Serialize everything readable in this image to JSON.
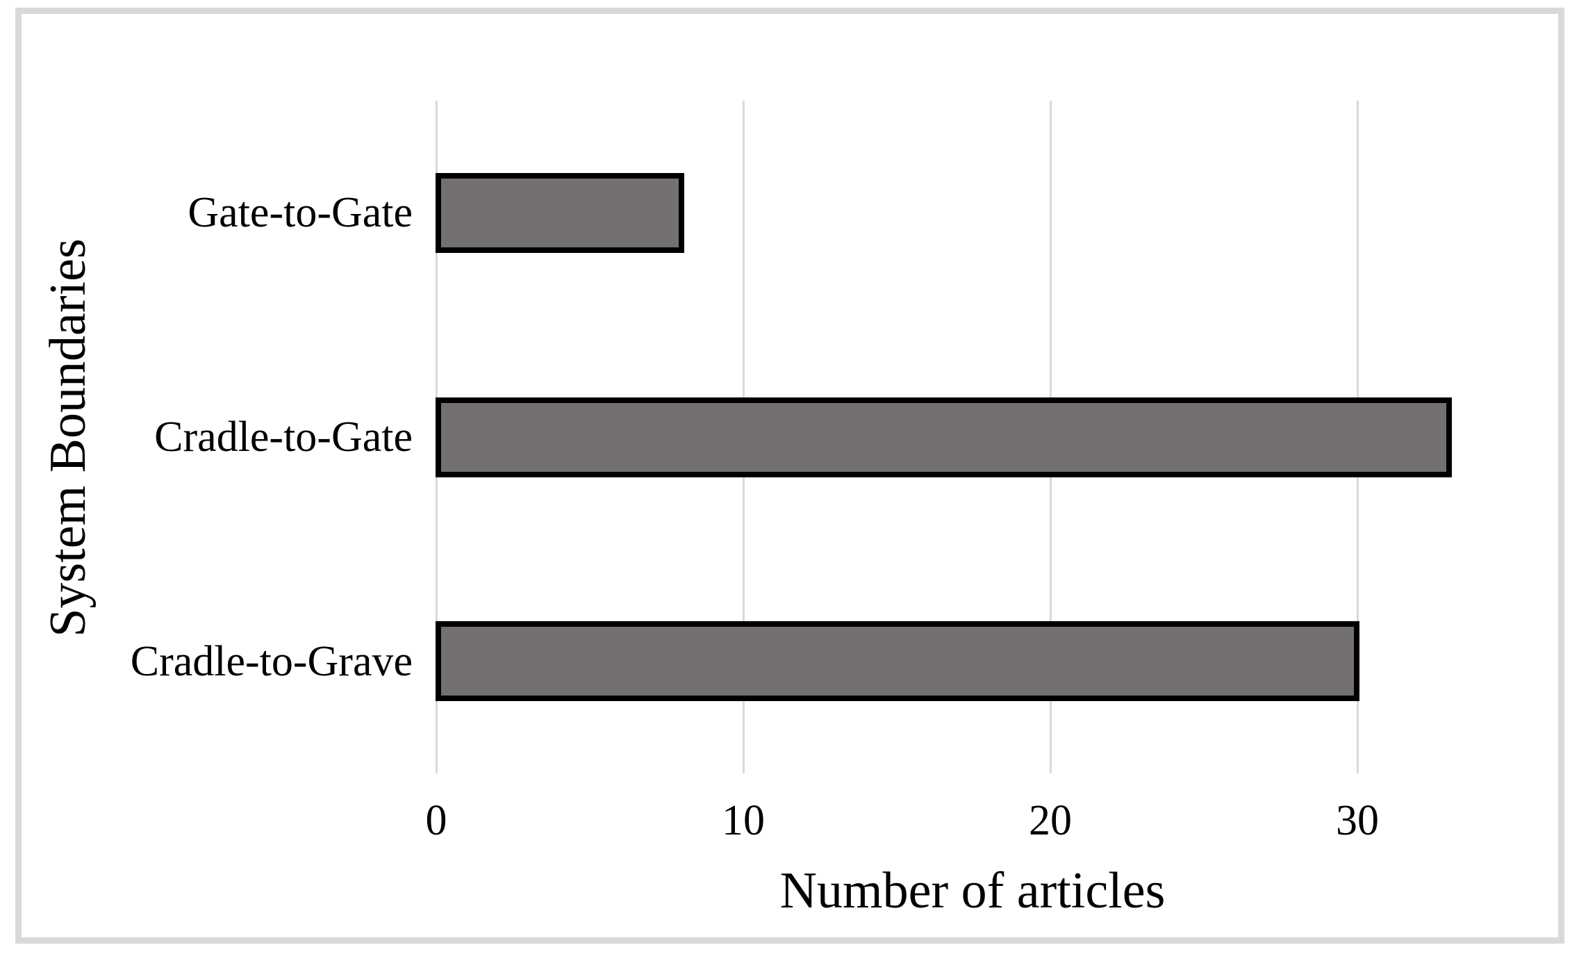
{
  "chart_data": {
    "type": "bar",
    "orientation": "horizontal",
    "categories": [
      "Gate-to-Gate",
      "Cradle-to-Gate",
      "Cradle-to-Grave"
    ],
    "values": [
      8,
      33,
      30
    ],
    "title": "",
    "xlabel": "Number of articles",
    "ylabel": "System Boundaries",
    "xlim": [
      0,
      35
    ],
    "xticks": [
      0,
      10,
      20,
      30
    ],
    "grid": "vertical-major-only",
    "legend": "none",
    "colors": {
      "bar_fill": "#747070",
      "bar_border": "#000000",
      "gridline": "#d9d9d9",
      "frame_border": "#d9d9d9",
      "text": "#000000",
      "background": "#ffffff"
    }
  }
}
